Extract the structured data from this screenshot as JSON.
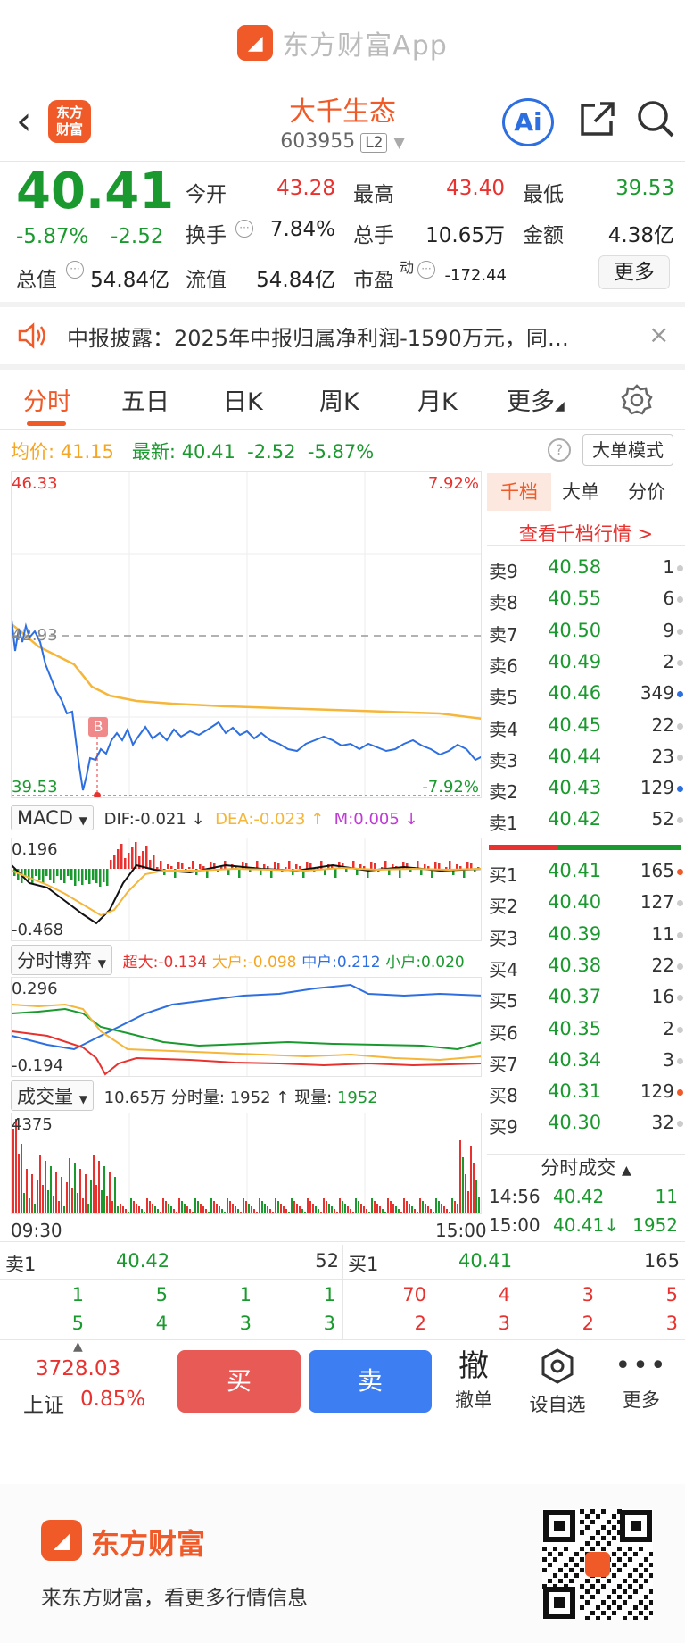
{
  "brand": {
    "app_title": "东方财富App",
    "logo_glyph": "◢"
  },
  "nav": {
    "stock_name": "大千生态",
    "stock_code": "603955",
    "level": "L2",
    "logo_line1": "东方",
    "logo_line2": "财富",
    "ai_label": "Ai"
  },
  "quote": {
    "price": "40.41",
    "change_pct": "-5.87%",
    "change_amt": "-2.52",
    "open_label": "今开",
    "open": "43.28",
    "high_label": "最高",
    "high": "43.40",
    "low_label": "最低",
    "low": "39.53",
    "turnover_label": "换手",
    "turnover": "7.84%",
    "volume_label": "总手",
    "volume": "10.65万",
    "amount_label": "金额",
    "amount": "4.38亿",
    "mktcap_label": "总值",
    "mktcap": "54.84亿",
    "float_label": "流值",
    "float": "54.84亿",
    "pe_label": "市盈",
    "pe_sup": "动",
    "pe": "-172.44",
    "more_label": "更多"
  },
  "notice": {
    "text": "中报披露：2025年中报归属净利润-1590万元，同…"
  },
  "tabs": [
    {
      "label": "分时"
    },
    {
      "label": "五日"
    },
    {
      "label": "日K"
    },
    {
      "label": "周K"
    },
    {
      "label": "月K"
    },
    {
      "label": "更多"
    }
  ],
  "intraday": {
    "avg_label": "均价:",
    "avg": "41.15",
    "latest_label": "最新:",
    "latest": "40.41",
    "latest_chg": "-2.52",
    "latest_pct": "-5.87%",
    "big_order_mode": "大单模式",
    "help": "?",
    "y_top": "46.33",
    "y_bottom": "39.53",
    "y_mid": "42.93",
    "pct_top": "7.92%",
    "pct_bottom": "-7.92%",
    "marker_b": "B"
  },
  "macd": {
    "selector": "MACD",
    "dif": "DIF:-0.021 ↓",
    "dea": "DEA:-0.023 ↑",
    "m": "M:0.005 ↓",
    "y_top": "0.196",
    "y_bottom": "-0.468"
  },
  "game": {
    "selector": "分时博弈",
    "super": "超大:-0.134",
    "large": "大户:-0.098",
    "mid": "中户:0.212",
    "small": "小户:0.020",
    "y_top": "0.296",
    "y_bottom": "-0.194"
  },
  "vol": {
    "selector": "成交量",
    "total": "10.65万",
    "min_label": "分时量:",
    "min_val": "1952 ↑",
    "now_label": "现量:",
    "now_val": "1952",
    "y_top": "4375",
    "t_start": "09:30",
    "t_end": "15:00"
  },
  "orderbook": {
    "tabs": [
      "千档",
      "大单",
      "分价"
    ],
    "link": "查看千档行情 >",
    "asks": [
      {
        "label": "卖9",
        "price": "40.58",
        "vol": "1",
        "dot": "#cccccc"
      },
      {
        "label": "卖8",
        "price": "40.55",
        "vol": "6",
        "dot": "#cccccc"
      },
      {
        "label": "卖7",
        "price": "40.50",
        "vol": "9",
        "dot": "#cccccc"
      },
      {
        "label": "卖6",
        "price": "40.49",
        "vol": "2",
        "dot": "#cccccc"
      },
      {
        "label": "卖5",
        "price": "40.46",
        "vol": "349",
        "dot": "#2d6fe0"
      },
      {
        "label": "卖4",
        "price": "40.45",
        "vol": "22",
        "dot": "#cccccc"
      },
      {
        "label": "卖3",
        "price": "40.44",
        "vol": "23",
        "dot": "#cccccc"
      },
      {
        "label": "卖2",
        "price": "40.43",
        "vol": "129",
        "dot": "#2d6fe0"
      },
      {
        "label": "卖1",
        "price": "40.42",
        "vol": "52",
        "dot": "#cccccc"
      }
    ],
    "bids": [
      {
        "label": "买1",
        "price": "40.41",
        "vol": "165",
        "dot": "#f05a28"
      },
      {
        "label": "买2",
        "price": "40.40",
        "vol": "127",
        "dot": "#cccccc"
      },
      {
        "label": "买3",
        "price": "40.39",
        "vol": "11",
        "dot": "#cccccc"
      },
      {
        "label": "买4",
        "price": "40.38",
        "vol": "22",
        "dot": "#cccccc"
      },
      {
        "label": "买5",
        "price": "40.37",
        "vol": "16",
        "dot": "#cccccc"
      },
      {
        "label": "买6",
        "price": "40.35",
        "vol": "2",
        "dot": "#cccccc"
      },
      {
        "label": "买7",
        "price": "40.34",
        "vol": "3",
        "dot": "#cccccc"
      },
      {
        "label": "买8",
        "price": "40.31",
        "vol": "129",
        "dot": "#f05a28"
      },
      {
        "label": "买9",
        "price": "40.30",
        "vol": "32",
        "dot": "#cccccc"
      }
    ],
    "trades_title": "分时成交",
    "trades": [
      {
        "time": "14:56",
        "price": "40.42",
        "vol": "11"
      },
      {
        "time": "15:00",
        "price": "40.41↓",
        "vol": "1952"
      }
    ]
  },
  "queue": {
    "sell_label": "卖1",
    "sell_price": "40.42",
    "sell_vol": "52",
    "buy_label": "买1",
    "buy_price": "40.41",
    "buy_vol": "165",
    "sell_row1": [
      "1",
      "5",
      "1",
      "1"
    ],
    "sell_row2": [
      "5",
      "4",
      "3",
      "3"
    ],
    "buy_row1": [
      "70",
      "4",
      "3",
      "5"
    ],
    "buy_row2": [
      "2",
      "3",
      "2",
      "3"
    ]
  },
  "index": {
    "value": "3728.03",
    "name": "上证",
    "pct": "0.85%"
  },
  "actions": {
    "buy": "买",
    "sell": "卖",
    "cancel_glyph": "撤",
    "cancel": "撤单",
    "watch": "设自选",
    "more": "更多"
  },
  "footer": {
    "brand": "东方财富",
    "slogan": "来东方财富，看更多行情信息"
  },
  "colors": {
    "accent": "#f05a28",
    "up": "#e8322f",
    "down": "#1a9a2e",
    "blue": "#2d6fe0",
    "avg_line": "#f5b63a"
  }
}
